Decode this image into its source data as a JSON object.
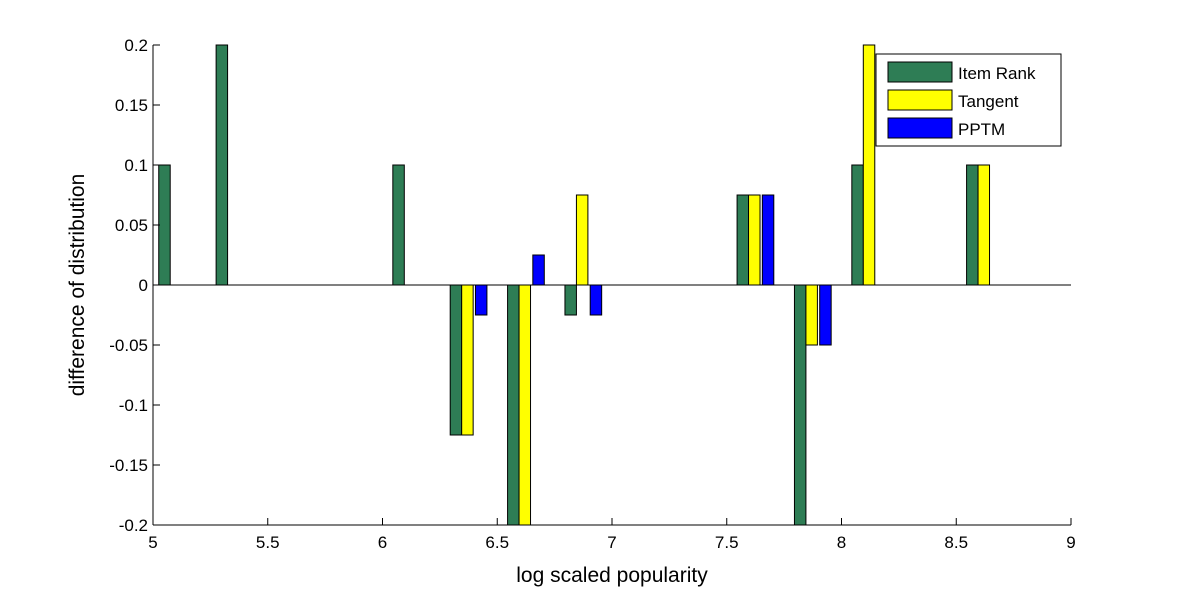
{
  "chart_data": {
    "type": "bar",
    "title": "",
    "xlabel": "log scaled popularity",
    "ylabel": "difference of distribution",
    "xlim": [
      5,
      9
    ],
    "ylim": [
      -0.2,
      0.2
    ],
    "xticks": [
      "5",
      "5.5",
      "6",
      "6.5",
      "7",
      "7.5",
      "8",
      "8.5",
      "9"
    ],
    "yticks": [
      "-0.2",
      "-0.15",
      "-0.1",
      "-0.05",
      "0",
      "0.05",
      "0.1",
      "0.15",
      "0.2"
    ],
    "grid": false,
    "legend_position": "top-right",
    "bar_width": 0.05,
    "series": [
      {
        "name": "Item Rank",
        "color": "#2e7d55",
        "points": [
          {
            "x": 5.05,
            "y": 0.1
          },
          {
            "x": 5.3,
            "y": 0.2
          },
          {
            "x": 6.07,
            "y": 0.1
          },
          {
            "x": 6.32,
            "y": -0.125
          },
          {
            "x": 6.57,
            "y": -0.2
          },
          {
            "x": 6.82,
            "y": -0.025
          },
          {
            "x": 7.57,
            "y": 0.075
          },
          {
            "x": 7.82,
            "y": -0.2
          },
          {
            "x": 8.07,
            "y": 0.1
          },
          {
            "x": 8.57,
            "y": 0.1
          }
        ]
      },
      {
        "name": "Tangent",
        "color": "#ffff00",
        "points": [
          {
            "x": 6.37,
            "y": -0.125
          },
          {
            "x": 6.62,
            "y": -0.2
          },
          {
            "x": 6.87,
            "y": 0.075
          },
          {
            "x": 7.62,
            "y": 0.075
          },
          {
            "x": 7.87,
            "y": -0.05
          },
          {
            "x": 8.12,
            "y": 0.2
          },
          {
            "x": 8.62,
            "y": 0.1
          }
        ]
      },
      {
        "name": "PPTM",
        "color": "#0000ff",
        "points": [
          {
            "x": 6.43,
            "y": -0.025
          },
          {
            "x": 6.68,
            "y": 0.025
          },
          {
            "x": 6.93,
            "y": -0.025
          },
          {
            "x": 7.68,
            "y": 0.075
          },
          {
            "x": 7.93,
            "y": -0.05
          }
        ]
      }
    ]
  }
}
